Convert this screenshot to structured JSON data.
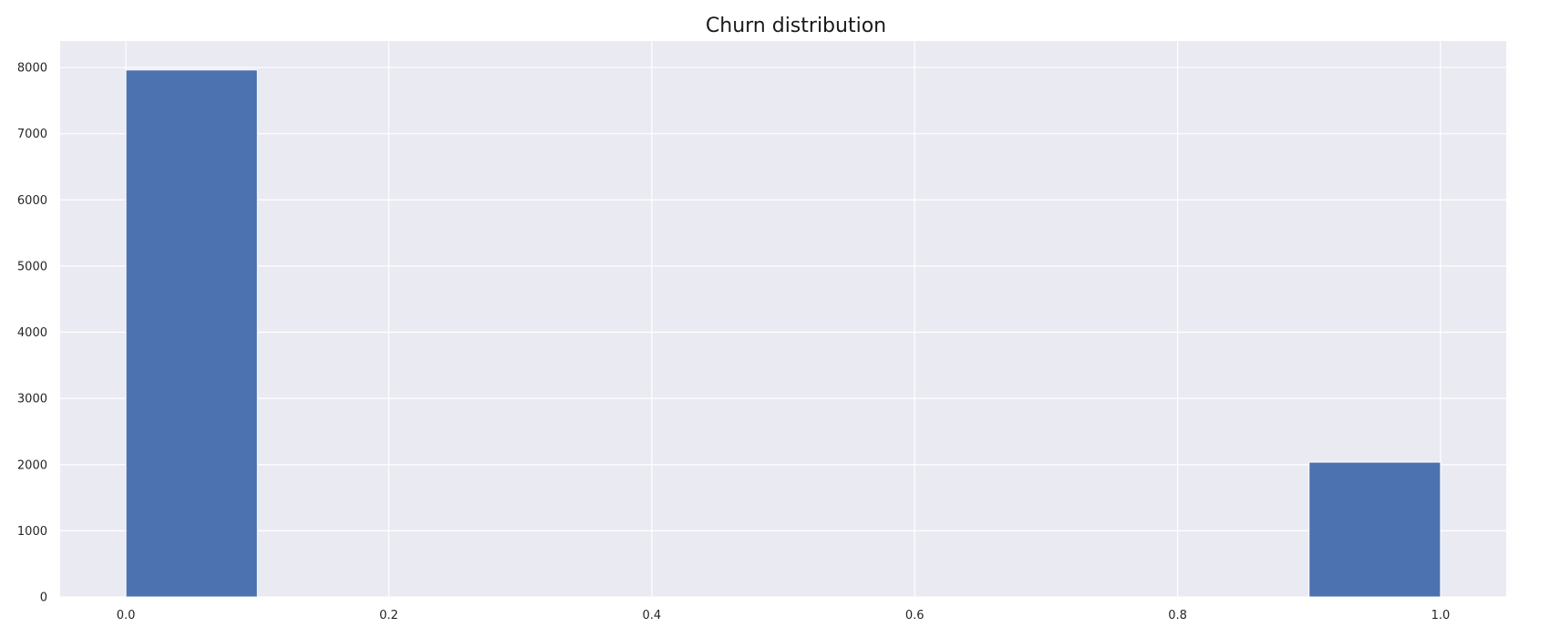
{
  "chart_data": {
    "type": "bar",
    "title": "Churn distribution",
    "xlabel": "",
    "ylabel": "",
    "bins": [
      {
        "x_start": 0.0,
        "x_end": 0.1,
        "value": 7963
      },
      {
        "x_start": 0.1,
        "x_end": 0.2,
        "value": 0
      },
      {
        "x_start": 0.2,
        "x_end": 0.3,
        "value": 0
      },
      {
        "x_start": 0.3,
        "x_end": 0.4,
        "value": 0
      },
      {
        "x_start": 0.4,
        "x_end": 0.5,
        "value": 0
      },
      {
        "x_start": 0.5,
        "x_end": 0.6,
        "value": 0
      },
      {
        "x_start": 0.6,
        "x_end": 0.7,
        "value": 0
      },
      {
        "x_start": 0.7,
        "x_end": 0.8,
        "value": 0
      },
      {
        "x_start": 0.8,
        "x_end": 0.9,
        "value": 0
      },
      {
        "x_start": 0.9,
        "x_end": 1.0,
        "value": 2037
      }
    ],
    "xlim": [
      -0.05,
      1.05
    ],
    "ylim": [
      0,
      8400
    ],
    "xticks": [
      0.0,
      0.2,
      0.4,
      0.6,
      0.8,
      1.0
    ],
    "xtick_labels": [
      "0.0",
      "0.2",
      "0.4",
      "0.6",
      "0.8",
      "1.0"
    ],
    "yticks": [
      0,
      1000,
      2000,
      3000,
      4000,
      5000,
      6000,
      7000,
      8000
    ],
    "ytick_labels": [
      "0",
      "1000",
      "2000",
      "3000",
      "4000",
      "5000",
      "6000",
      "7000",
      "8000"
    ],
    "grid": true,
    "legend": "none",
    "colors": {
      "bar": "#4c72b0",
      "plot_background": "#eaeaf2",
      "grid": "#ffffff"
    }
  }
}
